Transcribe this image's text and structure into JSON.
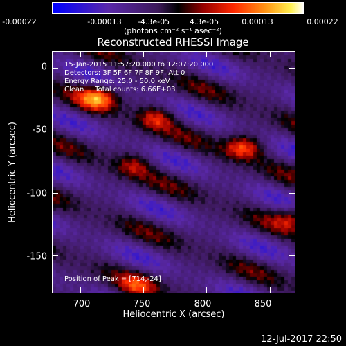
{
  "chart_data": {
    "type": "heatmap",
    "title": "Reconstructed RHESSI Image",
    "xlabel": "Heliocentric X (arcsec)",
    "ylabel": "Heliocentric Y (arcsec)",
    "xlim": [
      678,
      870
    ],
    "ylim": [
      -180,
      13
    ],
    "xticks": [
      700,
      750,
      800,
      850
    ],
    "yticks": [
      0,
      -50,
      -100,
      -150
    ],
    "colorbar": {
      "tick_labels": [
        "-0.00022",
        "-0.00013",
        "-4.3e-05",
        "4.3e-05",
        "0.00013",
        "0.00022"
      ],
      "tick_values": [
        -0.00022,
        -0.00013,
        -4.3e-05,
        4.3e-05,
        0.00013,
        0.00022
      ],
      "units": "(photons cm⁻² s⁻¹ asec⁻²)"
    },
    "annotations": [
      "15-Jan-2015 11:57:20.000 to 12:07:20.000",
      "Detectors: 3F 5F 6F 7F 8F 9F, Att 0",
      "Energy Range: 25.0 - 50.0 keV",
      "Clean     Total counts: 6.66E+03",
      "Position of Peak = [714,-24]"
    ],
    "peaks": [
      {
        "x": 714,
        "y": -24,
        "value": 0.00022
      },
      {
        "x": 829,
        "y": -64,
        "value": 0.0002
      },
      {
        "x": 760,
        "y": -40,
        "value": 0.00015
      },
      {
        "x": 742,
        "y": -78,
        "value": 0.00012
      },
      {
        "x": 868,
        "y": -120,
        "value": 0.00012
      },
      {
        "x": 745,
        "y": -175,
        "value": 0.00013
      }
    ]
  },
  "footer": "12-Jul-2017 22:50"
}
